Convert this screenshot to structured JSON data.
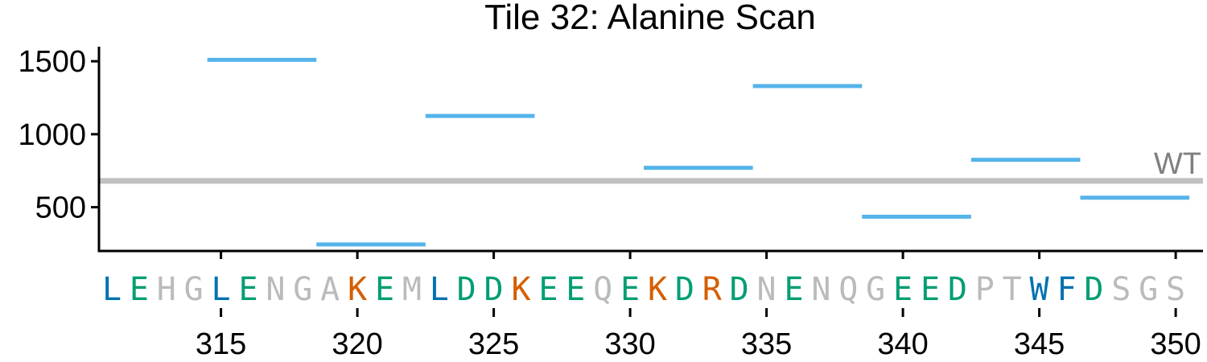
{
  "chart_data": {
    "type": "line",
    "title": "Tile 32: Alanine Scan",
    "xlabel": "",
    "ylabel": "",
    "xlim": [
      311,
      351
    ],
    "ylim": [
      200,
      1600
    ],
    "y_ticks": [
      500,
      1000,
      1500
    ],
    "x_ticks": [
      315,
      320,
      325,
      330,
      335,
      340,
      345,
      350
    ],
    "grid": false,
    "wt": {
      "label": "WT",
      "value": 680,
      "color": "#c0c0c0"
    },
    "segment_color": "#56b4e9",
    "segments": [
      {
        "x_start": 315,
        "x_end": 318,
        "value": 1510
      },
      {
        "x_start": 319,
        "x_end": 322,
        "value": 245
      },
      {
        "x_start": 323,
        "x_end": 326,
        "value": 1125
      },
      {
        "x_start": 331,
        "x_end": 334,
        "value": 770
      },
      {
        "x_start": 335,
        "x_end": 338,
        "value": 1330
      },
      {
        "x_start": 339,
        "x_end": 342,
        "value": 435
      },
      {
        "x_start": 343,
        "x_end": 346,
        "value": 825
      },
      {
        "x_start": 347,
        "x_end": 350,
        "value": 565
      }
    ],
    "residue_colors": {
      "hydrophobic": "#0072b2",
      "acidic_polar": "#009e73",
      "basic": "#d55e00",
      "other": "#bbbbbb"
    },
    "sequence": [
      {
        "pos": 311,
        "aa": "L",
        "class": "hydrophobic"
      },
      {
        "pos": 312,
        "aa": "E",
        "class": "acidic_polar"
      },
      {
        "pos": 313,
        "aa": "H",
        "class": "other"
      },
      {
        "pos": 314,
        "aa": "G",
        "class": "other"
      },
      {
        "pos": 315,
        "aa": "L",
        "class": "hydrophobic"
      },
      {
        "pos": 316,
        "aa": "E",
        "class": "acidic_polar"
      },
      {
        "pos": 317,
        "aa": "N",
        "class": "other"
      },
      {
        "pos": 318,
        "aa": "G",
        "class": "other"
      },
      {
        "pos": 319,
        "aa": "A",
        "class": "other"
      },
      {
        "pos": 320,
        "aa": "K",
        "class": "basic"
      },
      {
        "pos": 321,
        "aa": "E",
        "class": "acidic_polar"
      },
      {
        "pos": 322,
        "aa": "M",
        "class": "other"
      },
      {
        "pos": 323,
        "aa": "L",
        "class": "hydrophobic"
      },
      {
        "pos": 324,
        "aa": "D",
        "class": "acidic_polar"
      },
      {
        "pos": 325,
        "aa": "D",
        "class": "acidic_polar"
      },
      {
        "pos": 326,
        "aa": "K",
        "class": "basic"
      },
      {
        "pos": 327,
        "aa": "E",
        "class": "acidic_polar"
      },
      {
        "pos": 328,
        "aa": "E",
        "class": "acidic_polar"
      },
      {
        "pos": 329,
        "aa": "Q",
        "class": "other"
      },
      {
        "pos": 330,
        "aa": "E",
        "class": "acidic_polar"
      },
      {
        "pos": 331,
        "aa": "K",
        "class": "basic"
      },
      {
        "pos": 332,
        "aa": "D",
        "class": "acidic_polar"
      },
      {
        "pos": 333,
        "aa": "R",
        "class": "basic"
      },
      {
        "pos": 334,
        "aa": "D",
        "class": "acidic_polar"
      },
      {
        "pos": 335,
        "aa": "N",
        "class": "other"
      },
      {
        "pos": 336,
        "aa": "E",
        "class": "acidic_polar"
      },
      {
        "pos": 337,
        "aa": "N",
        "class": "other"
      },
      {
        "pos": 338,
        "aa": "Q",
        "class": "other"
      },
      {
        "pos": 339,
        "aa": "G",
        "class": "other"
      },
      {
        "pos": 340,
        "aa": "E",
        "class": "acidic_polar"
      },
      {
        "pos": 341,
        "aa": "E",
        "class": "acidic_polar"
      },
      {
        "pos": 342,
        "aa": "D",
        "class": "acidic_polar"
      },
      {
        "pos": 343,
        "aa": "P",
        "class": "other"
      },
      {
        "pos": 344,
        "aa": "T",
        "class": "other"
      },
      {
        "pos": 345,
        "aa": "W",
        "class": "hydrophobic"
      },
      {
        "pos": 346,
        "aa": "F",
        "class": "hydrophobic"
      },
      {
        "pos": 347,
        "aa": "D",
        "class": "acidic_polar"
      },
      {
        "pos": 348,
        "aa": "S",
        "class": "other"
      },
      {
        "pos": 349,
        "aa": "G",
        "class": "other"
      },
      {
        "pos": 350,
        "aa": "S",
        "class": "other"
      }
    ]
  }
}
